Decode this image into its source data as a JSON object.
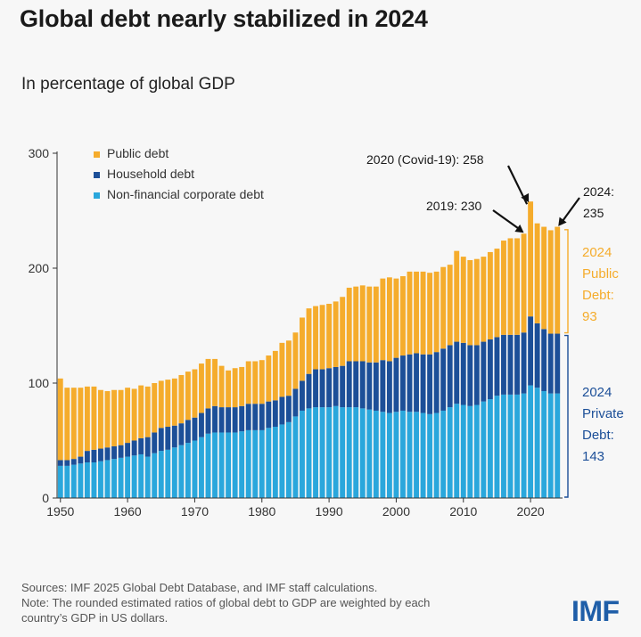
{
  "title": "Global debt nearly stabilized in 2024",
  "subtitle": "In percentage of global GDP",
  "footer": {
    "sources": "Sources: IMF 2025 Global Debt Database, and IMF staff calculations.",
    "note_line1": "Note: The rounded estimated ratios of global debt to GDP are weighted by each",
    "note_line2": "country’s GDP in US dollars."
  },
  "logo_text": "IMF",
  "colors": {
    "public": "#f5ac2c",
    "household": "#1c4f98",
    "corporate": "#2aa7dc",
    "background": "#f7f7f7"
  },
  "chart_data": {
    "type": "bar",
    "stacked": true,
    "x_tick_labels": [
      "1950",
      "1960",
      "1970",
      "1980",
      "1990",
      "2000",
      "2010",
      "2020"
    ],
    "y_tick_labels": [
      "0",
      "100",
      "200",
      "300"
    ],
    "ylim": [
      0,
      300
    ],
    "xlim": [
      1950,
      2024
    ],
    "grid": false,
    "legend_position": "top-left",
    "x": [
      1950,
      1951,
      1952,
      1953,
      1954,
      1955,
      1956,
      1957,
      1958,
      1959,
      1960,
      1961,
      1962,
      1963,
      1964,
      1965,
      1966,
      1967,
      1968,
      1969,
      1970,
      1971,
      1972,
      1973,
      1974,
      1975,
      1976,
      1977,
      1978,
      1979,
      1980,
      1981,
      1982,
      1983,
      1984,
      1985,
      1986,
      1987,
      1988,
      1989,
      1990,
      1991,
      1992,
      1993,
      1994,
      1995,
      1996,
      1997,
      1998,
      1999,
      2000,
      2001,
      2002,
      2003,
      2004,
      2005,
      2006,
      2007,
      2008,
      2009,
      2010,
      2011,
      2012,
      2013,
      2014,
      2015,
      2016,
      2017,
      2018,
      2019,
      2020,
      2021,
      2022,
      2023,
      2024
    ],
    "series": [
      {
        "name": "Non-financial corporate debt",
        "color": "#2aa7dc",
        "values": [
          28,
          28,
          29,
          30,
          31,
          31,
          32,
          33,
          34,
          35,
          36,
          37,
          38,
          36,
          39,
          41,
          42,
          44,
          46,
          48,
          50,
          53,
          56,
          57,
          57,
          57,
          57,
          58,
          59,
          59,
          59,
          61,
          62,
          64,
          66,
          71,
          76,
          78,
          79,
          79,
          79,
          80,
          79,
          79,
          79,
          78,
          77,
          76,
          75,
          74,
          75,
          76,
          75,
          75,
          74,
          73,
          74,
          76,
          79,
          82,
          81,
          80,
          81,
          84,
          86,
          89,
          90,
          90,
          90,
          91,
          98,
          96,
          93,
          91,
          91
        ]
      },
      {
        "name": "Household debt",
        "color": "#1c4f98",
        "values": [
          5,
          5,
          5,
          6,
          10,
          11,
          11,
          11,
          11,
          11,
          12,
          13,
          14,
          17,
          18,
          20,
          20,
          19,
          19,
          20,
          20,
          21,
          22,
          23,
          22,
          22,
          22,
          22,
          23,
          23,
          23,
          23,
          23,
          24,
          23,
          24,
          26,
          30,
          33,
          33,
          34,
          34,
          36,
          40,
          40,
          41,
          41,
          42,
          45,
          45,
          47,
          48,
          50,
          51,
          51,
          52,
          53,
          54,
          54,
          54,
          54,
          53,
          52,
          52,
          52,
          51,
          52,
          52,
          52,
          53,
          60,
          56,
          54,
          52,
          52
        ]
      },
      {
        "name": "Public debt",
        "color": "#f5ac2c",
        "values": [
          71,
          63,
          62,
          60,
          56,
          55,
          51,
          49,
          49,
          48,
          48,
          45,
          46,
          44,
          43,
          41,
          41,
          41,
          42,
          42,
          42,
          43,
          43,
          41,
          36,
          32,
          34,
          34,
          37,
          37,
          38,
          40,
          43,
          47,
          48,
          49,
          55,
          57,
          55,
          56,
          56,
          57,
          60,
          64,
          65,
          66,
          66,
          66,
          71,
          73,
          69,
          69,
          72,
          71,
          72,
          71,
          70,
          71,
          70,
          79,
          75,
          74,
          75,
          74,
          76,
          77,
          82,
          84,
          84,
          86,
          100,
          87,
          89,
          90,
          93
        ]
      }
    ],
    "annotations": [
      {
        "text": "2020 (Covid-19): 258",
        "x": 2020,
        "y": 258
      },
      {
        "text": "2019: 230",
        "x": 2019,
        "y": 230
      },
      {
        "text_line1": "2024:",
        "text_line2": "235",
        "x": 2024,
        "y": 235
      },
      {
        "line1": "2024",
        "line2": "Public",
        "line3": "Debt:",
        "line4": "93",
        "color": "#f5ac2c",
        "y_from": 143,
        "y_to": 235
      },
      {
        "line1": "2024",
        "line2": "Private",
        "line3": "Debt:",
        "line4": "143",
        "color": "#1c4f98",
        "y_from": 0,
        "y_to": 143
      }
    ]
  }
}
